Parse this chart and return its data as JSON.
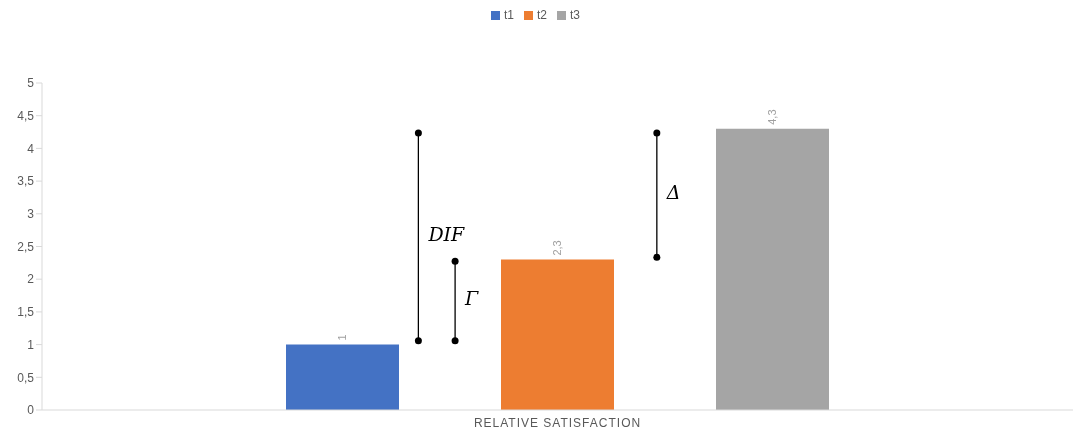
{
  "chart_data": {
    "type": "bar",
    "categories": [
      "RELATIVE SATISFACTION"
    ],
    "series": [
      {
        "name": "t1",
        "color": "#4472c4",
        "values": [
          1
        ],
        "value_labels": [
          "1"
        ]
      },
      {
        "name": "t2",
        "color": "#ed7d31",
        "values": [
          2.3
        ],
        "value_labels": [
          "2,3"
        ]
      },
      {
        "name": "t3",
        "color": "#a5a5a5",
        "values": [
          4.3
        ],
        "value_labels": [
          "4,3"
        ]
      }
    ],
    "ylim": [
      0,
      5
    ],
    "yticks": [
      0,
      {
        "value": 0.5,
        "label": "0,5"
      },
      1,
      {
        "value": 1.5,
        "label": "1,5"
      },
      2,
      {
        "value": 2.5,
        "label": "2,5"
      },
      3,
      {
        "value": 3.5,
        "label": "3,5"
      },
      4,
      {
        "value": 4.5,
        "label": "4,5"
      },
      5
    ],
    "annotations": [
      "DIF",
      "Γ",
      "Δ"
    ],
    "grid": false,
    "legend": "top"
  }
}
